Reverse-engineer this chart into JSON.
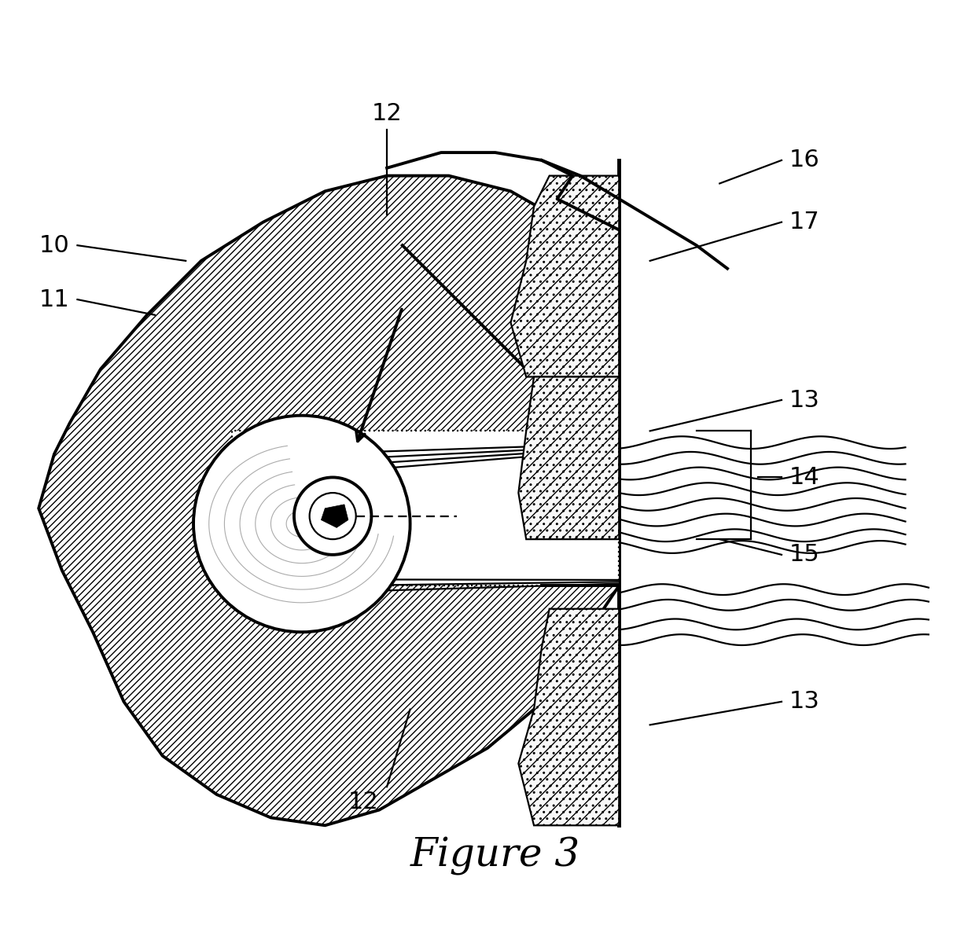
{
  "title": "Figure 3",
  "title_fontsize": 36,
  "background_color": "#ffffff",
  "line_color": "#000000",
  "lw_main": 2.8,
  "lw_thin": 1.6,
  "lw_thick": 3.5,
  "label_fontsize": 22
}
